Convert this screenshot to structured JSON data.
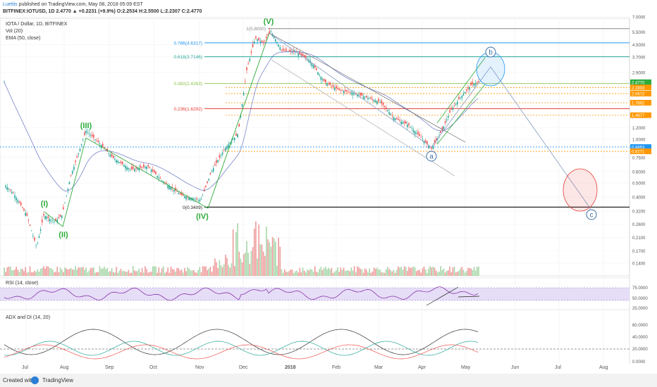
{
  "header": {
    "author": "Luettis",
    "published": "published on TradingView.com, May 08, 2018 05:09 EST",
    "symbol_line": "BITFINEX:IOTUSD, 1D  2.4770 ▲ +0.2231 (+9.9%) O:2.2534 H:2.5500 L:2.2307 C:2.4770"
  },
  "legend": {
    "title": "IOTA / Dollar, 1D, BITFINEX",
    "vol": "Vol (20)",
    "ema": "EMA (50, close)",
    "rsi": "RSI (14, close)",
    "adx": "ADX and DI (14, 20)"
  },
  "footer": {
    "created": "Created with",
    "brand": "TradingView"
  },
  "colors": {
    "up": "#26a69a",
    "down": "#ef5350",
    "wave": "#2eab3b",
    "fib_blue": "#2196f3",
    "fib_teal": "#26a69a",
    "fib_lime": "#8bc34a",
    "fib_red": "#e53935",
    "orange": "#ff9800",
    "rsi": "#7b1fa2",
    "rsi_band": "#e6ddf6",
    "ema": "#3f51b5"
  },
  "chart_data": {
    "type": "candlestick",
    "x_ticks": [
      "Jul",
      "Aug",
      "Sep",
      "Oct",
      "Nov",
      "Dec",
      "2018",
      "Feb",
      "Mar",
      "Apr",
      "May",
      "Jun",
      "Jul",
      "Aug"
    ],
    "price_scale": "log",
    "price_ticks": [
      "7.0000",
      "5.5000",
      "4.5000",
      "3.7000",
      "2.9000",
      "1.2000",
      "1.0000",
      "0.7500",
      "0.6000",
      "0.5000",
      "0.4000",
      "0.3200",
      "0.2600",
      "0.2100",
      "0.1700",
      "0.1400"
    ],
    "price_labels": [
      {
        "value": "2.4770",
        "color": "#2eab3b"
      },
      {
        "value": "2.2803",
        "color": "#ff9800"
      },
      {
        "value": "2.0672",
        "color": "#ff9800"
      },
      {
        "value": "1.7892",
        "color": "#ff9800"
      },
      {
        "value": "1.4677",
        "color": "#ff9800"
      },
      {
        "value": "0.8853",
        "color": "#2196f3"
      },
      {
        "value": "0.8271",
        "color": "#ff9800"
      }
    ],
    "fib_levels": [
      {
        "label": "1(5.8000)",
        "value": 5.8
      },
      {
        "label": "0.786(4.6317)",
        "value": 4.6317
      },
      {
        "label": "0.618(3.7146)",
        "value": 3.7146
      },
      {
        "label": "0.382(2.4263)",
        "value": 2.4263
      },
      {
        "label": "0.236(1.6292)",
        "value": 1.6292
      },
      {
        "label": "0(0.3409)",
        "value": 0.3409
      }
    ],
    "wave_labels": [
      "(I)",
      "(II)",
      "(III)",
      "(IV)",
      "(V)",
      "a",
      "b",
      "c"
    ],
    "rsi_ticks": [
      "75.0000",
      "50.0000",
      "25.0000"
    ],
    "adx_ticks": [
      "60.0000",
      "40.0000",
      "20.0000",
      "0.0000"
    ]
  }
}
